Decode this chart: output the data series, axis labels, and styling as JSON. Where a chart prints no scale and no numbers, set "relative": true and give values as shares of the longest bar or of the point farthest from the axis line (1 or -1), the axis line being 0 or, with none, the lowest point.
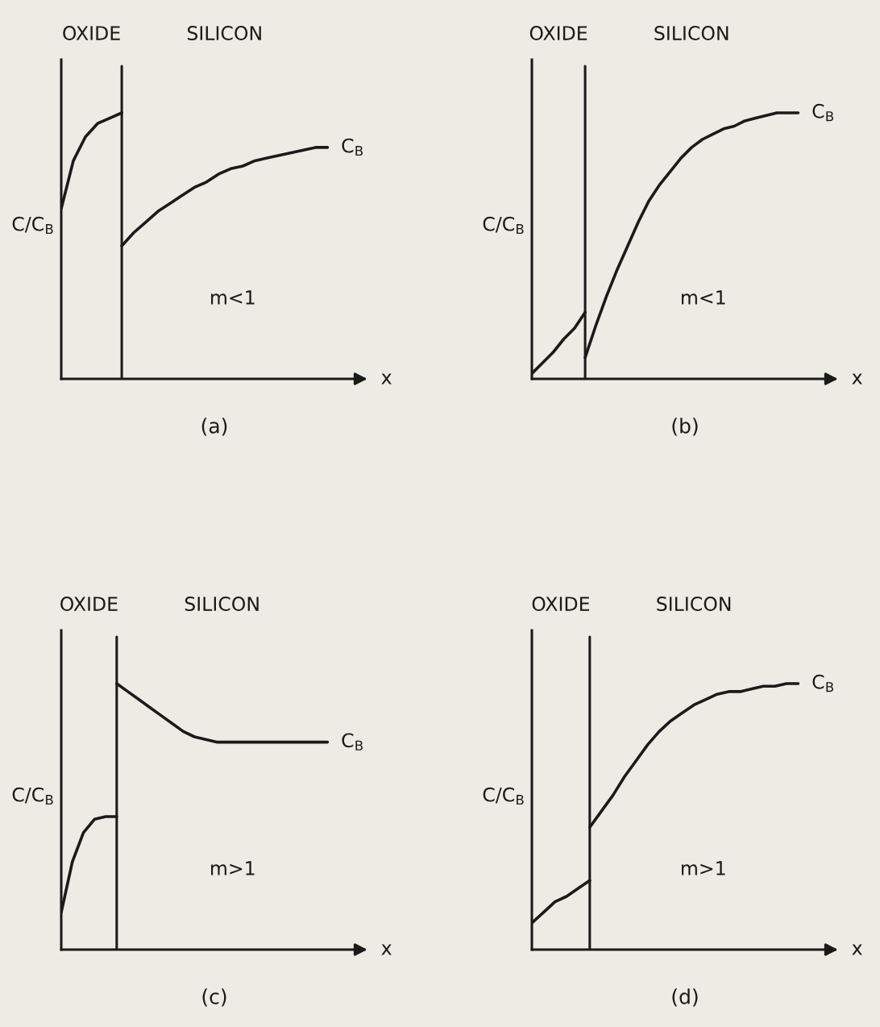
{
  "chart_data": [
    {
      "type": "line",
      "title": "(a)",
      "xlabel": "x",
      "ylabel": "C/C$_{B}$",
      "relative": true,
      "categories": [
        null,
        null,
        null,
        null,
        null,
        null,
        null,
        null,
        null,
        null,
        null,
        null,
        null,
        null,
        null,
        null,
        null,
        null,
        null,
        null,
        null,
        null,
        null
      ],
      "series": [
        {
          "color": "#1a1a1a",
          "values": [
            0.64,
            0.82,
            0.91,
            0.96,
            0.98,
            1,
            null,
            null,
            null,
            null,
            null,
            null,
            null,
            null,
            null,
            null,
            null,
            null,
            null,
            null,
            null,
            null,
            null
          ]
        },
        {
          "name": "C$_{B}$",
          "color": "#1a1a1a",
          "values": [
            null,
            null,
            null,
            null,
            null,
            0.5,
            0.55,
            0.59,
            0.63,
            0.66,
            0.69,
            0.72,
            0.74,
            0.77,
            0.79,
            0.8,
            0.82,
            0.83,
            0.84,
            0.85,
            0.86,
            0.87,
            0.87
          ]
        }
      ],
      "annotations": [
        "OXIDE",
        "SILICON",
        "m<1"
      ]
    },
    {
      "type": "line",
      "title": "(b)",
      "xlabel": "x",
      "ylabel": "C/C$_{B}$",
      "relative": true,
      "categories": [
        null,
        null,
        null,
        null,
        null,
        null,
        null,
        null,
        null,
        null,
        null,
        null,
        null,
        null,
        null,
        null,
        null,
        null,
        null,
        null,
        null,
        null,
        null,
        null,
        null,
        null
      ],
      "series": [
        {
          "color": "#1a1a1a",
          "values": [
            0.02,
            0.06,
            0.1,
            0.15,
            0.19,
            0.25,
            null,
            null,
            null,
            null,
            null,
            null,
            null,
            null,
            null,
            null,
            null,
            null,
            null,
            null,
            null,
            null,
            null,
            null,
            null,
            null
          ]
        },
        {
          "name": "C$_{B}$",
          "color": "#1a1a1a",
          "values": [
            null,
            null,
            null,
            null,
            null,
            0.08,
            0.2,
            0.31,
            0.41,
            0.5,
            0.59,
            0.67,
            0.73,
            0.78,
            0.83,
            0.87,
            0.9,
            0.92,
            0.94,
            0.95,
            0.97,
            0.98,
            0.99,
            1,
            1,
            1
          ]
        }
      ],
      "annotations": [
        "OXIDE",
        "SILICON",
        "m<1"
      ]
    },
    {
      "type": "line",
      "title": "(c)",
      "xlabel": "x",
      "ylabel": "C/C$_{B}$",
      "relative": true,
      "categories": [
        null,
        null,
        null,
        null,
        null,
        null,
        null,
        null,
        null,
        null,
        null,
        null,
        null,
        null,
        null,
        null,
        null,
        null,
        null,
        null,
        null,
        null,
        null,
        null,
        null
      ],
      "series": [
        {
          "color": "#1a1a1a",
          "values": [
            0.14,
            0.33,
            0.44,
            0.49,
            0.5,
            0.5,
            null,
            null,
            null,
            null,
            null,
            null,
            null,
            null,
            null,
            null,
            null,
            null,
            null,
            null,
            null,
            null,
            null,
            null,
            null
          ]
        },
        {
          "name": "C$_{B}$",
          "color": "#1a1a1a",
          "values": [
            null,
            null,
            null,
            null,
            null,
            1,
            0.97,
            0.94,
            0.91,
            0.88,
            0.85,
            0.82,
            0.8,
            0.79,
            0.78,
            0.78,
            0.78,
            0.78,
            0.78,
            0.78,
            0.78,
            0.78,
            0.78,
            0.78,
            0.78
          ]
        }
      ],
      "annotations": [
        "OXIDE",
        "SILICON",
        "m>1"
      ]
    },
    {
      "type": "line",
      "title": "(d)",
      "xlabel": "x",
      "ylabel": "C/C$_{B}$",
      "relative": true,
      "categories": [
        null,
        null,
        null,
        null,
        null,
        null,
        null,
        null,
        null,
        null,
        null,
        null,
        null,
        null,
        null,
        null,
        null,
        null,
        null,
        null,
        null,
        null,
        null,
        null
      ],
      "series": [
        {
          "color": "#1a1a1a",
          "values": [
            0.1,
            0.14,
            0.18,
            0.2,
            0.23,
            0.26,
            null,
            null,
            null,
            null,
            null,
            null,
            null,
            null,
            null,
            null,
            null,
            null,
            null,
            null,
            null,
            null,
            null,
            null
          ]
        },
        {
          "name": "C$_{B}$",
          "color": "#1a1a1a",
          "values": [
            null,
            null,
            null,
            null,
            null,
            0.46,
            0.52,
            0.58,
            0.65,
            0.71,
            0.77,
            0.82,
            0.86,
            0.89,
            0.92,
            0.94,
            0.96,
            0.97,
            0.97,
            0.98,
            0.99,
            0.99,
            1,
            1
          ]
        }
      ],
      "annotations": [
        "OXIDE",
        "SILICON",
        "m>1"
      ]
    }
  ]
}
